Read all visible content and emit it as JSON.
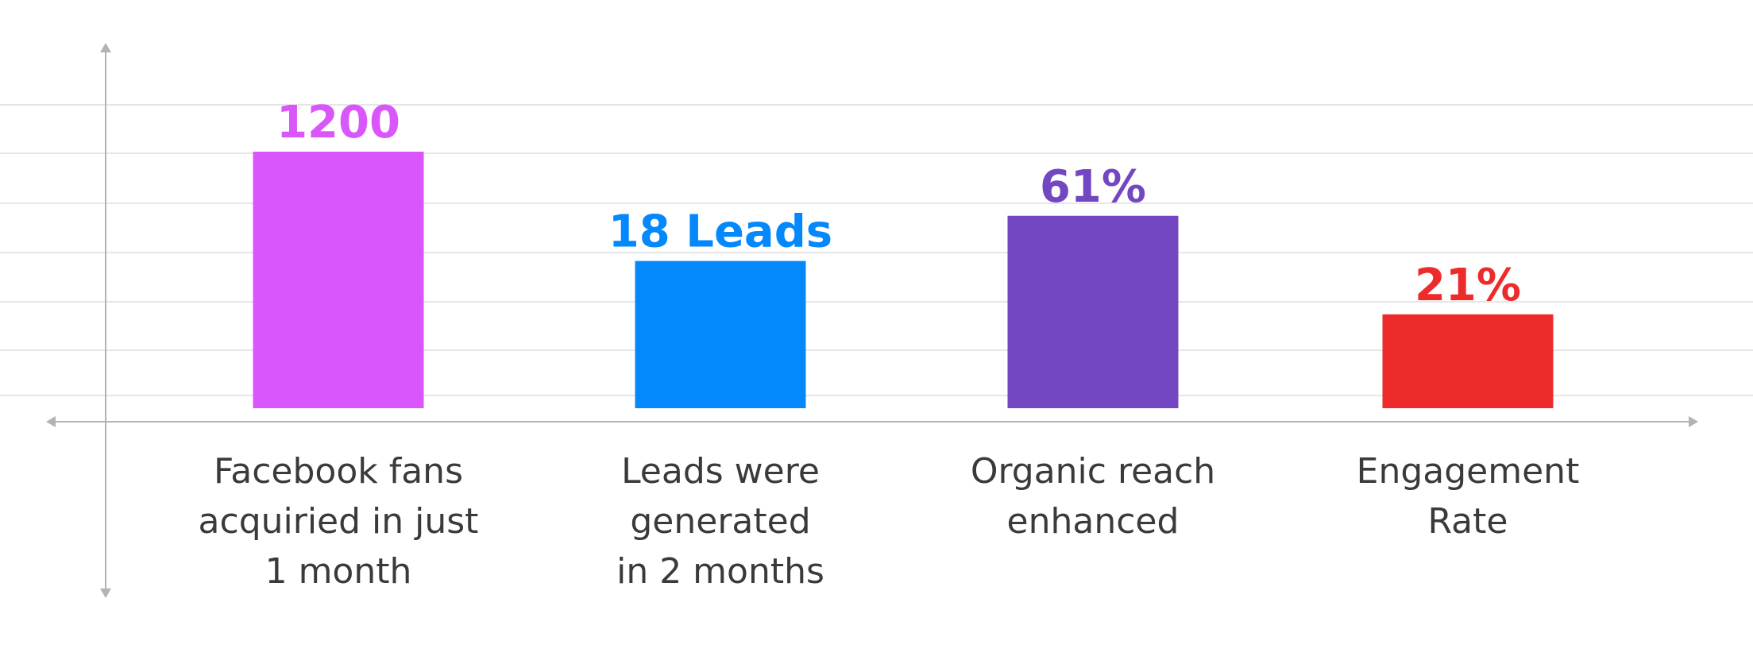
{
  "chart_data": {
    "type": "bar",
    "categories": [
      [
        "Facebook fans",
        "acquiried in just",
        "1 month"
      ],
      [
        "Leads were",
        "generated",
        "in 2 months"
      ],
      [
        "Organic reach",
        "enhanced"
      ],
      [
        "Engagement",
        "Rate"
      ]
    ],
    "value_labels": [
      "1200",
      "18 Leads",
      "61%",
      "21%"
    ],
    "relative_heights": [
      1.0,
      0.574,
      0.75,
      0.366
    ],
    "colors": [
      "#d957fa",
      "#0488fb",
      "#7347c2",
      "#ee2b2b"
    ],
    "grid": true,
    "y_ticks_shown": false,
    "title": "",
    "xlabel": "",
    "ylabel": ""
  }
}
